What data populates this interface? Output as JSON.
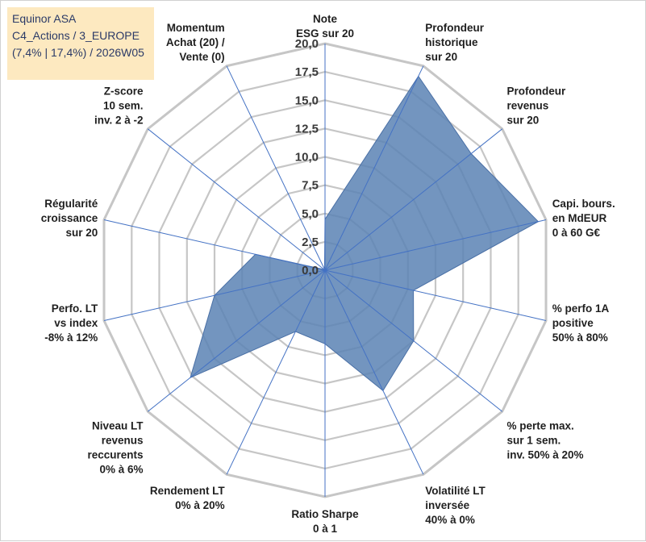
{
  "title_box": {
    "line1": "Equinor ASA",
    "line2": "C4_Actions / 3_EUROPE",
    "line3": "(7,4% | 17,4%) / 2026W05"
  },
  "colors": {
    "fill": "#5b82b4",
    "stroke": "#4a70a6",
    "grid": "#c6c6c6",
    "spoke": "#4472c4",
    "title_bg": "#fde9c0",
    "title_text": "#2b3a67",
    "label_text": "#1f1f1f"
  },
  "chart_data": {
    "type": "radar",
    "title": "Equinor ASA",
    "rmax": 20,
    "tick_step": 2.5,
    "ticks": [
      "0,0",
      "2,5",
      "5,0",
      "7,5",
      "10,0",
      "12,5",
      "15,0",
      "17,5",
      "20,0"
    ],
    "axes": [
      {
        "lines": [
          "Note",
          "ESG sur 20"
        ],
        "value": 4.5
      },
      {
        "lines": [
          "Profondeur",
          "historique",
          "sur 20"
        ],
        "value": 19.0
      },
      {
        "lines": [
          "Profondeur",
          "revenus",
          "sur 20"
        ],
        "value": 16.5
      },
      {
        "lines": [
          "Capi. bours.",
          "en MdEUR",
          "0 à 60 G€"
        ],
        "value": 19.3
      },
      {
        "lines": [
          "% perfo 1A",
          "positive",
          "50% à 80%"
        ],
        "value": 8.0
      },
      {
        "lines": [
          "% perte max.",
          "sur 1 sem.",
          "inv. 50% à 20%"
        ],
        "value": 10.0
      },
      {
        "lines": [
          "Volatilité LT",
          "inversée",
          "40% à 0%"
        ],
        "value": 11.8
      },
      {
        "lines": [
          "Ratio Sharpe",
          "0 à 1"
        ],
        "value": 6.5
      },
      {
        "lines": [
          "Rendement LT",
          "0% à 20%"
        ],
        "value": 6.0
      },
      {
        "lines": [
          "Niveau LT",
          "revenus",
          "reccurents",
          "0% à 6%"
        ],
        "value": 15.2
      },
      {
        "lines": [
          "Perfo. LT",
          "vs index",
          "-8% à 12%"
        ],
        "value": 10.0
      },
      {
        "lines": [
          "Régularité",
          "croissance",
          "sur 20"
        ],
        "value": 6.3
      },
      {
        "lines": [
          "Z-score",
          "10 sem.",
          "inv. 2 à -2"
        ],
        "value": 0.1
      },
      {
        "lines": [
          "Momentum",
          "Achat (20) /",
          "Vente (0)"
        ],
        "value": 0.1
      }
    ]
  }
}
